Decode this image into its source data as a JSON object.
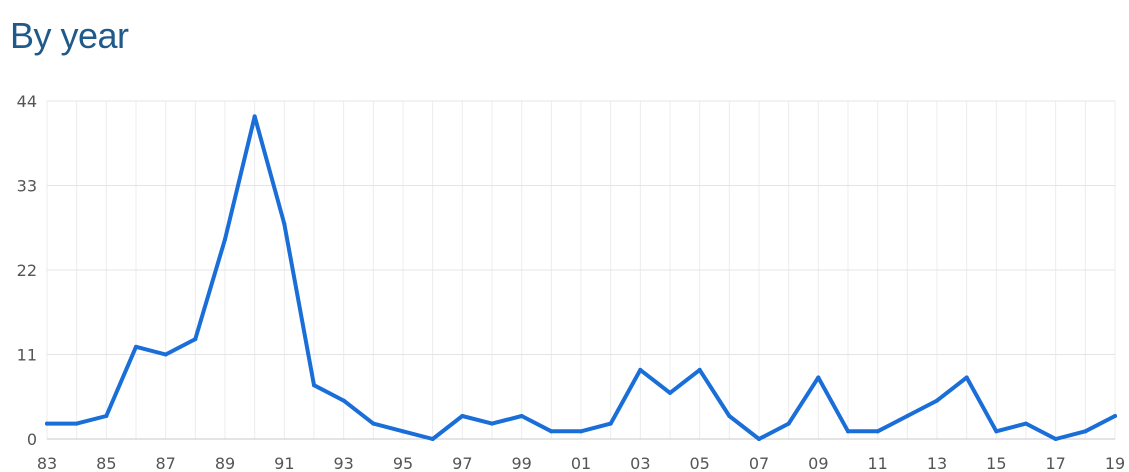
{
  "page": {
    "title": "By year"
  },
  "chart_data": {
    "type": "line",
    "title": "By year",
    "xlabel": "",
    "ylabel": "",
    "x": [
      "83",
      "84",
      "85",
      "86",
      "87",
      "88",
      "89",
      "90",
      "91",
      "92",
      "93",
      "94",
      "95",
      "96",
      "97",
      "98",
      "99",
      "00",
      "01",
      "02",
      "03",
      "04",
      "05",
      "06",
      "07",
      "08",
      "09",
      "10",
      "11",
      "12",
      "13",
      "14",
      "15",
      "16",
      "17",
      "18",
      "19"
    ],
    "x_tick_labels": [
      "83",
      "85",
      "87",
      "89",
      "91",
      "93",
      "95",
      "97",
      "99",
      "01",
      "03",
      "05",
      "07",
      "09",
      "11",
      "13",
      "15",
      "17",
      "19"
    ],
    "series": [
      {
        "values": [
          2,
          2,
          3,
          12,
          11,
          13,
          26,
          42,
          28,
          7,
          5,
          2,
          1,
          0,
          3,
          2,
          3,
          1,
          1,
          2,
          9,
          6,
          9,
          3,
          0,
          2,
          8,
          1,
          1,
          3,
          5,
          8,
          1,
          2,
          0,
          1,
          3
        ],
        "color": "#1a6ed8"
      }
    ],
    "ylim": [
      0,
      44
    ],
    "y_ticks": [
      0,
      11,
      22,
      33,
      44
    ],
    "grid": true,
    "legend": "none"
  }
}
